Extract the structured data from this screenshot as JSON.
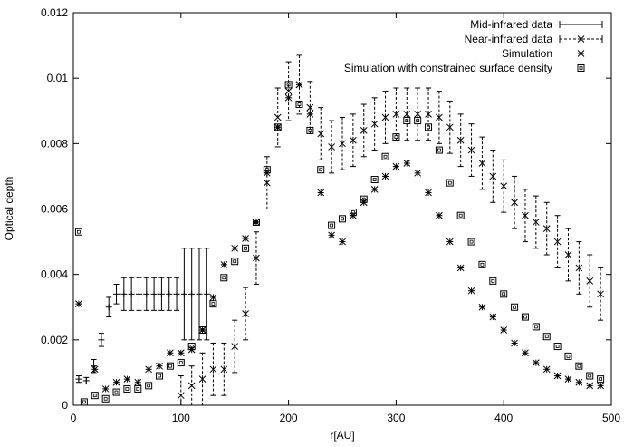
{
  "chart_data": {
    "type": "scatter",
    "title": "",
    "xlabel": "r[AU]",
    "ylabel": "Optical depth",
    "xlim": [
      0,
      500
    ],
    "ylim": [
      0,
      0.012
    ],
    "xticks": [
      0,
      100,
      200,
      300,
      400,
      500
    ],
    "yticks": [
      0,
      0.002,
      0.004,
      0.006,
      0.008,
      0.01,
      0.012
    ],
    "xtick_labels": [
      "0",
      "100",
      "200",
      "300",
      "400",
      "500"
    ],
    "ytick_labels": [
      "0",
      "0.002",
      "0.004",
      "0.006",
      "0.008",
      "0.01",
      "0.012"
    ],
    "grid": false,
    "legend_position": "top-right",
    "series": [
      {
        "name": "Mid-infrared data",
        "marker": "plus",
        "errorbar_style": "solid",
        "x": [
          5,
          12,
          19,
          26,
          33,
          40,
          47,
          54,
          61,
          68,
          75,
          82,
          89,
          96,
          103,
          110,
          117,
          124
        ],
        "y": [
          0.0008,
          0.00075,
          0.0012,
          0.002,
          0.003,
          0.0034,
          0.0034,
          0.0034,
          0.0034,
          0.0034,
          0.0034,
          0.0034,
          0.0034,
          0.0034,
          0.0034,
          0.0034,
          0.0034,
          0.0034
        ],
        "err": [
          0.0001,
          0.0001,
          0.0002,
          0.0002,
          0.0003,
          0.0003,
          0.0005,
          0.0005,
          0.0005,
          0.0005,
          0.0005,
          0.0005,
          0.0005,
          0.0005,
          0.0014,
          0.0014,
          0.0014,
          0.0014
        ]
      },
      {
        "name": "Near-infrared data",
        "marker": "cross",
        "errorbar_style": "dashed",
        "x": [
          100,
          110,
          120,
          130,
          140,
          150,
          160,
          170,
          180,
          190,
          200,
          210,
          220,
          230,
          240,
          250,
          260,
          270,
          280,
          290,
          300,
          310,
          320,
          330,
          340,
          350,
          360,
          370,
          380,
          390,
          400,
          410,
          420,
          430,
          440,
          450,
          460,
          470,
          480,
          490
        ],
        "y": [
          0.0003,
          0.0006,
          0.0008,
          0.0011,
          0.0011,
          0.0018,
          0.0028,
          0.0045,
          0.0068,
          0.0088,
          0.0096,
          0.0098,
          0.0091,
          0.0083,
          0.0079,
          0.008,
          0.0081,
          0.0084,
          0.0086,
          0.0088,
          0.0089,
          0.0089,
          0.0089,
          0.0089,
          0.0088,
          0.0085,
          0.0081,
          0.0078,
          0.0074,
          0.007,
          0.0067,
          0.0062,
          0.0058,
          0.0056,
          0.0054,
          0.005,
          0.0046,
          0.0042,
          0.0038,
          0.0034
        ],
        "err": [
          0.0006,
          0.0006,
          0.0008,
          0.0008,
          0.0008,
          0.0008,
          0.0008,
          0.0008,
          0.0008,
          0.0009,
          0.0009,
          0.0009,
          0.0008,
          0.0008,
          0.0008,
          0.0008,
          0.0008,
          0.0008,
          0.0008,
          0.0008,
          0.0008,
          0.0008,
          0.0008,
          0.0008,
          0.0008,
          0.0008,
          0.0008,
          0.0008,
          0.0008,
          0.0008,
          0.0008,
          0.0008,
          0.0008,
          0.0008,
          0.0008,
          0.0008,
          0.0008,
          0.0008,
          0.0008,
          0.0008
        ]
      },
      {
        "name": "Simulation",
        "marker": "asterisk",
        "x": [
          5,
          20,
          30,
          40,
          50,
          60,
          70,
          80,
          90,
          100,
          110,
          120,
          130,
          140,
          150,
          160,
          170,
          180,
          190,
          200,
          210,
          220,
          230,
          240,
          250,
          260,
          270,
          280,
          290,
          300,
          310,
          320,
          330,
          340,
          350,
          360,
          370,
          380,
          390,
          400,
          410,
          420,
          430,
          440,
          450,
          460,
          470,
          480,
          490
        ],
        "y": [
          0.0031,
          0.0011,
          0.0005,
          0.0007,
          0.0008,
          0.0007,
          0.0011,
          0.0012,
          0.0016,
          0.0016,
          0.0017,
          0.0023,
          0.0033,
          0.0043,
          0.0048,
          0.0051,
          0.0056,
          0.0071,
          0.0085,
          0.0094,
          0.0098,
          0.0089,
          0.0065,
          0.0052,
          0.005,
          0.0058,
          0.0062,
          0.0066,
          0.007,
          0.0073,
          0.0074,
          0.0071,
          0.0065,
          0.0058,
          0.005,
          0.0042,
          0.0035,
          0.003,
          0.0027,
          0.0023,
          0.0019,
          0.0016,
          0.0013,
          0.0011,
          0.0009,
          0.0008,
          0.0007,
          0.0006,
          0.0006
        ]
      },
      {
        "name": "Simulation with constrained surface density",
        "marker": "box",
        "x": [
          5,
          10,
          20,
          30,
          40,
          50,
          60,
          70,
          80,
          90,
          100,
          110,
          120,
          130,
          140,
          150,
          160,
          170,
          180,
          190,
          200,
          210,
          220,
          230,
          240,
          250,
          260,
          270,
          280,
          290,
          300,
          310,
          320,
          330,
          340,
          350,
          360,
          370,
          380,
          390,
          400,
          410,
          420,
          430,
          440,
          450,
          460,
          470,
          480,
          490
        ],
        "y": [
          0.0053,
          0.0001,
          0.0003,
          0.0002,
          0.0004,
          0.0005,
          0.0005,
          0.0006,
          0.0009,
          0.0012,
          0.0013,
          0.0018,
          0.0023,
          0.0031,
          0.0039,
          0.0044,
          0.0048,
          0.0056,
          0.0072,
          0.0085,
          0.0098,
          0.0092,
          0.0084,
          0.0072,
          0.0055,
          0.0057,
          0.0059,
          0.0063,
          0.0069,
          0.0076,
          0.0082,
          0.0087,
          0.0087,
          0.0085,
          0.0078,
          0.0068,
          0.0058,
          0.005,
          0.0043,
          0.0038,
          0.0034,
          0.003,
          0.0027,
          0.0024,
          0.0021,
          0.0018,
          0.0015,
          0.0012,
          0.0009,
          0.0008
        ]
      }
    ]
  }
}
